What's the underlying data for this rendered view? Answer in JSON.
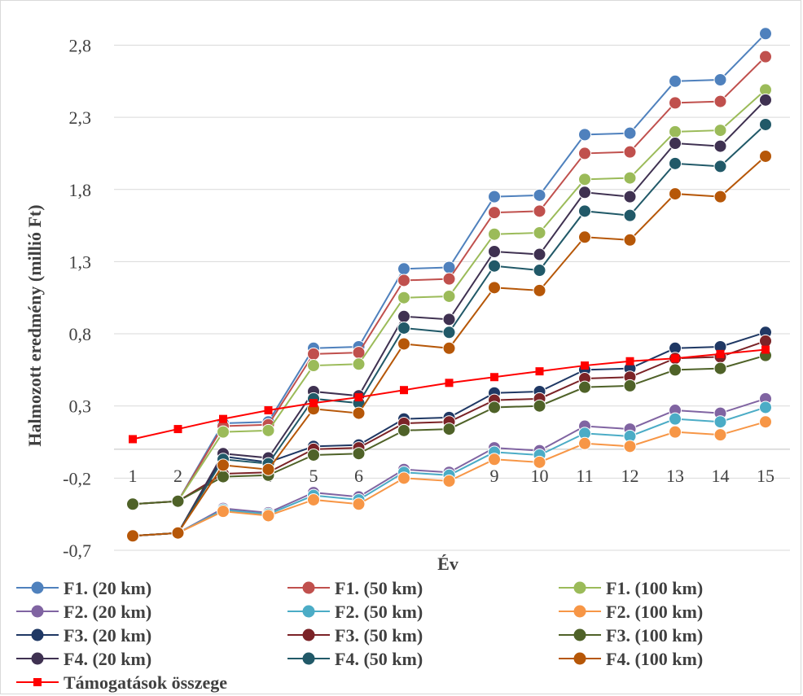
{
  "chart_data": {
    "type": "line",
    "title": "",
    "xlabel": "Év",
    "ylabel": "Halmozott eredmény (millió Ft)",
    "x": [
      1,
      2,
      3,
      4,
      5,
      6,
      7,
      8,
      9,
      10,
      11,
      12,
      13,
      14,
      15
    ],
    "y_ticks": [
      "-0,7",
      "-0,2",
      "0,3",
      "0,8",
      "1,3",
      "1,8",
      "2,3",
      "2,8"
    ],
    "y_tick_values": [
      -0.7,
      -0.2,
      0.3,
      0.8,
      1.3,
      1.8,
      2.3,
      2.8
    ],
    "ylim": [
      -0.7,
      3.0
    ],
    "grid": "horizontal",
    "legend_position": "bottom",
    "series": [
      {
        "name": "F1. (20 km)",
        "color": "#4f81bd",
        "marker": "circle",
        "values": [
          -0.38,
          -0.36,
          0.18,
          0.19,
          0.7,
          0.71,
          1.25,
          1.26,
          1.75,
          1.76,
          2.18,
          2.19,
          2.55,
          2.56,
          2.88
        ]
      },
      {
        "name": "F1. (50 km)",
        "color": "#c0504d",
        "marker": "circle",
        "values": [
          -0.38,
          -0.36,
          0.16,
          0.17,
          0.66,
          0.67,
          1.17,
          1.18,
          1.64,
          1.65,
          2.05,
          2.06,
          2.4,
          2.41,
          2.72
        ]
      },
      {
        "name": "F1. (100 km)",
        "color": "#9bbb59",
        "marker": "circle",
        "values": [
          -0.38,
          -0.36,
          0.12,
          0.13,
          0.58,
          0.59,
          1.05,
          1.06,
          1.49,
          1.5,
          1.87,
          1.88,
          2.2,
          2.21,
          2.49
        ]
      },
      {
        "name": "F2. (20 km)",
        "color": "#8064a2",
        "marker": "circle",
        "values": [
          -0.6,
          -0.58,
          -0.41,
          -0.44,
          -0.3,
          -0.33,
          -0.14,
          -0.16,
          0.01,
          -0.01,
          0.16,
          0.14,
          0.27,
          0.25,
          0.35
        ]
      },
      {
        "name": "F2. (50 km)",
        "color": "#4bacc6",
        "marker": "circle",
        "values": [
          -0.6,
          -0.58,
          -0.42,
          -0.45,
          -0.32,
          -0.35,
          -0.16,
          -0.18,
          -0.02,
          -0.04,
          0.11,
          0.09,
          0.21,
          0.19,
          0.29
        ]
      },
      {
        "name": "F2. (100 km)",
        "color": "#f79646",
        "marker": "circle",
        "values": [
          -0.6,
          -0.58,
          -0.43,
          -0.46,
          -0.35,
          -0.38,
          -0.2,
          -0.22,
          -0.07,
          -0.09,
          0.04,
          0.02,
          0.12,
          0.1,
          0.19
        ]
      },
      {
        "name": "F3. (20 km)",
        "color": "#1f3864",
        "marker": "circle",
        "values": [
          -0.6,
          -0.58,
          -0.05,
          -0.09,
          0.02,
          0.03,
          0.21,
          0.22,
          0.39,
          0.4,
          0.55,
          0.56,
          0.7,
          0.71,
          0.81
        ]
      },
      {
        "name": "F3. (50 km)",
        "color": "#7b2327",
        "marker": "circle",
        "values": [
          -0.38,
          -0.36,
          -0.17,
          -0.16,
          0.0,
          0.01,
          0.18,
          0.19,
          0.34,
          0.35,
          0.49,
          0.5,
          0.63,
          0.64,
          0.75
        ]
      },
      {
        "name": "F3. (100 km)",
        "color": "#4f6228",
        "marker": "circle",
        "values": [
          -0.38,
          -0.36,
          -0.19,
          -0.18,
          -0.04,
          -0.03,
          0.13,
          0.14,
          0.29,
          0.3,
          0.43,
          0.44,
          0.55,
          0.56,
          0.65
        ]
      },
      {
        "name": "F4. (20 km)",
        "color": "#3f3151",
        "marker": "circle",
        "values": [
          -0.6,
          -0.58,
          -0.03,
          -0.06,
          0.4,
          0.37,
          0.92,
          0.9,
          1.37,
          1.35,
          1.78,
          1.75,
          2.12,
          2.1,
          2.42
        ]
      },
      {
        "name": "F4. (50 km)",
        "color": "#215968",
        "marker": "circle",
        "values": [
          -0.6,
          -0.58,
          -0.07,
          -0.1,
          0.35,
          0.32,
          0.84,
          0.81,
          1.27,
          1.24,
          1.65,
          1.62,
          1.98,
          1.96,
          2.25
        ]
      },
      {
        "name": "F4. (100 km)",
        "color": "#b65708",
        "marker": "circle",
        "values": [
          -0.6,
          -0.58,
          -0.11,
          -0.14,
          0.28,
          0.25,
          0.73,
          0.7,
          1.12,
          1.1,
          1.47,
          1.45,
          1.77,
          1.75,
          2.03
        ]
      },
      {
        "name": "Támogatások összege",
        "color": "#ff0000",
        "marker": "square",
        "values": [
          0.07,
          0.14,
          0.21,
          0.27,
          0.32,
          0.36,
          0.41,
          0.46,
          0.5,
          0.54,
          0.58,
          0.61,
          0.63,
          0.66,
          0.69
        ]
      }
    ]
  }
}
